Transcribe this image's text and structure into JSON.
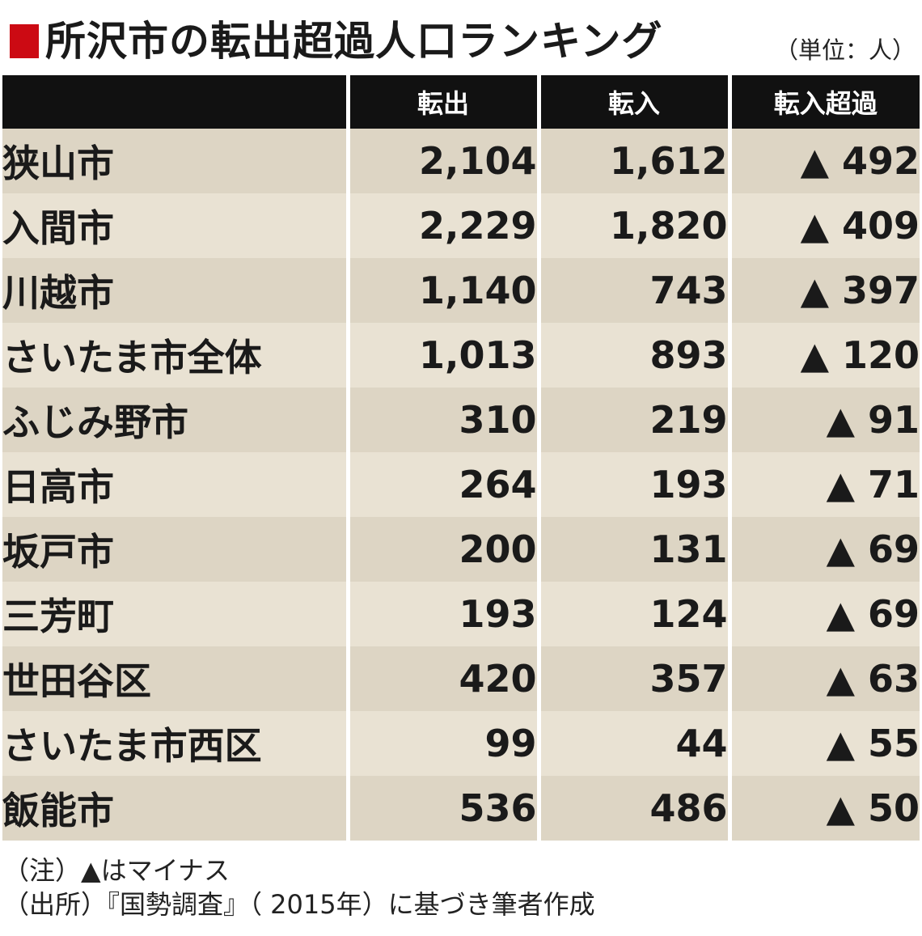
{
  "title": "所沢市の転出超過人口ランキング",
  "unit": "（単位：人）",
  "colors": {
    "title_mark": "#cc0a13",
    "header_bg": "#111111",
    "row_odd": "#ddd5c4",
    "row_even": "#e9e2d3"
  },
  "chart_data": {
    "type": "table",
    "title": "所沢市の転出超過人口ランキング",
    "unit": "（単位：人）",
    "columns": [
      "",
      "転出",
      "転入",
      "転入超過"
    ],
    "rows": [
      {
        "name": "狭山市",
        "out": "2,104",
        "in": "1,612",
        "net": "▲ 492"
      },
      {
        "name": "入間市",
        "out": "2,229",
        "in": "1,820",
        "net": "▲ 409"
      },
      {
        "name": "川越市",
        "out": "1,140",
        "in": "743",
        "net": "▲ 397"
      },
      {
        "name": "さいたま市全体",
        "out": "1,013",
        "in": "893",
        "net": "▲ 120"
      },
      {
        "name": "ふじみ野市",
        "out": "310",
        "in": "219",
        "net": "▲ 91"
      },
      {
        "name": "日高市",
        "out": "264",
        "in": "193",
        "net": "▲ 71"
      },
      {
        "name": "坂戸市",
        "out": "200",
        "in": "131",
        "net": "▲ 69"
      },
      {
        "name": "三芳町",
        "out": "193",
        "in": "124",
        "net": "▲ 69"
      },
      {
        "name": "世田谷区",
        "out": "420",
        "in": "357",
        "net": "▲ 63"
      },
      {
        "name": "さいたま市西区",
        "out": "99",
        "in": "44",
        "net": "▲ 55"
      },
      {
        "name": "飯能市",
        "out": "536",
        "in": "486",
        "net": "▲ 50"
      }
    ]
  },
  "notes": {
    "note": "（注）▲はマイナス",
    "source": "（出所）『国勢調査』（ 2015年）に基づき筆者作成"
  }
}
